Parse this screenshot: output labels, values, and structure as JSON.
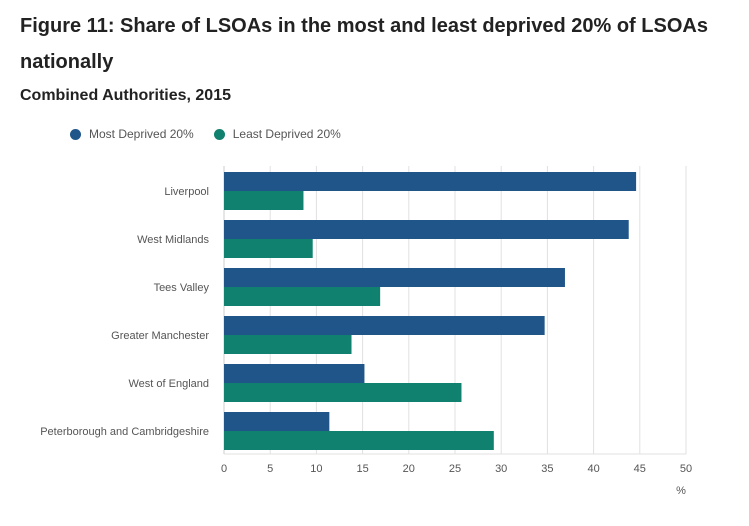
{
  "header": {
    "title": "Figure 11: Share of LSOAs in the most and least deprived 20% of LSOAs nationally",
    "subtitle": "Combined Authorities, 2015"
  },
  "colors": {
    "most_deprived": "#1f5589",
    "least_deprived": "#10806f",
    "grid": "#e0e0e0"
  },
  "chart_data": {
    "type": "bar",
    "orientation": "horizontal",
    "title": "Figure 11: Share of LSOAs in the most and least deprived 20% of LSOAs nationally",
    "subtitle": "Combined Authorities, 2015",
    "xlabel": "%",
    "ylabel": "",
    "xlim": [
      0,
      50
    ],
    "xticks": [
      0,
      5,
      10,
      15,
      20,
      25,
      30,
      35,
      40,
      45,
      50
    ],
    "grid": true,
    "legend_position": "top-left",
    "categories": [
      "Liverpool",
      "West Midlands",
      "Tees Valley",
      "Greater Manchester",
      "West of England",
      "Peterborough and Cambridgeshire"
    ],
    "series": [
      {
        "name": "Most Deprived 20%",
        "values": [
          44.6,
          43.8,
          36.9,
          34.7,
          15.2,
          11.4
        ]
      },
      {
        "name": "Least Deprived 20%",
        "values": [
          8.6,
          9.6,
          16.9,
          13.8,
          25.7,
          29.2
        ]
      }
    ]
  }
}
